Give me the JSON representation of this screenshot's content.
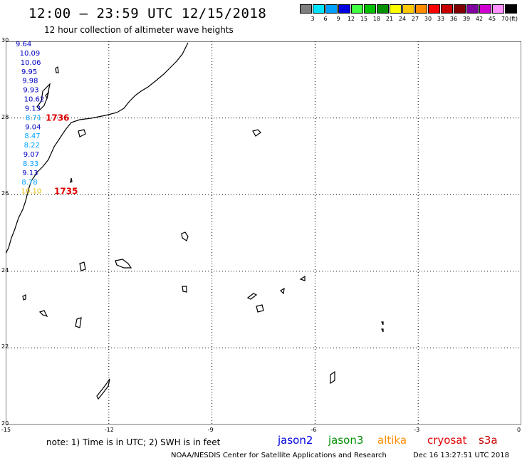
{
  "header": {
    "title": "12:00 – 23:59 UTC 12/15/2018",
    "subtitle": "12 hour collection of altimeter wave heights"
  },
  "legend": {
    "unit": "(ft)",
    "items": [
      {
        "label": "3",
        "color": "#7f7f7f"
      },
      {
        "label": "6",
        "color": "#00e5ff"
      },
      {
        "label": "9",
        "color": "#00a0ff"
      },
      {
        "label": "12",
        "color": "#0000e0"
      },
      {
        "label": "15",
        "color": "#40ff40"
      },
      {
        "label": "18",
        "color": "#00c000"
      },
      {
        "label": "21",
        "color": "#009000"
      },
      {
        "label": "24",
        "color": "#ffff00"
      },
      {
        "label": "27",
        "color": "#ffc800"
      },
      {
        "label": "30",
        "color": "#ff8c00"
      },
      {
        "label": "33",
        "color": "#ff0000"
      },
      {
        "label": "36",
        "color": "#c80000"
      },
      {
        "label": "39",
        "color": "#800000"
      },
      {
        "label": "42",
        "color": "#8000a0"
      },
      {
        "label": "45",
        "color": "#d000d0"
      },
      {
        "label": "70",
        "color": "#ff90ff"
      },
      {
        "label": "",
        "color": "#000000"
      }
    ]
  },
  "axes": {
    "lat_labels": [
      "30",
      "28",
      "26",
      "24",
      "22",
      "20"
    ],
    "lon_labels": [
      "-15",
      "-12",
      "-9",
      "-6",
      "-3",
      "0"
    ]
  },
  "observations": [
    {
      "value": "9.64",
      "lat": 29.98,
      "color": "#0000c0"
    },
    {
      "value": "10.09",
      "lat": 29.74,
      "color": "#0000c0"
    },
    {
      "value": "10.06",
      "lat": 29.5,
      "color": "#0000c0"
    },
    {
      "value": "9.95",
      "lat": 29.26,
      "color": "#0000c0"
    },
    {
      "value": "9.98",
      "lat": 29.02,
      "color": "#0000c0"
    },
    {
      "value": "9.93",
      "lat": 28.78,
      "color": "#0000c0"
    },
    {
      "value": "10.62",
      "lat": 28.54,
      "color": "#0000c0"
    },
    {
      "value": "9.13",
      "lat": 28.3,
      "color": "#0000c0"
    },
    {
      "value": "8.71",
      "lat": 28.06,
      "color": "#00a0ff"
    },
    {
      "value": "9.04",
      "lat": 27.82,
      "color": "#0000c0"
    },
    {
      "value": "8.47",
      "lat": 27.58,
      "color": "#00a0ff"
    },
    {
      "value": "8.22",
      "lat": 27.34,
      "color": "#00a0ff"
    },
    {
      "value": "9.07",
      "lat": 27.1,
      "color": "#0000c0"
    },
    {
      "value": "8.33",
      "lat": 26.86,
      "color": "#00a0ff"
    },
    {
      "value": "9.13",
      "lat": 26.62,
      "color": "#0000c0"
    },
    {
      "value": "8.78",
      "lat": 26.38,
      "color": "#00a0ff"
    },
    {
      "value": "10.10",
      "lat": 26.14,
      "color": "#e8c000"
    }
  ],
  "time_labels": [
    {
      "text": "1736",
      "color": "#e00000"
    },
    {
      "text": "1735",
      "color": "#e00000"
    }
  ],
  "footer": {
    "note": "note:  1) Time is in UTC;  2) SWH is in feet",
    "satellites": [
      {
        "name": "jason2",
        "color": "#0000e0"
      },
      {
        "name": "jason3",
        "color": "#009000"
      },
      {
        "name": "altika",
        "color": "#ff8c00"
      },
      {
        "name": "cryosat",
        "color": "#e00000"
      },
      {
        "name": "s3a",
        "color": "#c80000"
      }
    ],
    "credit": "NOAA/NESDIS Center for Satellite Applications and Research",
    "timestamp": "Dec 16 13:27:51 UTC 2018"
  }
}
